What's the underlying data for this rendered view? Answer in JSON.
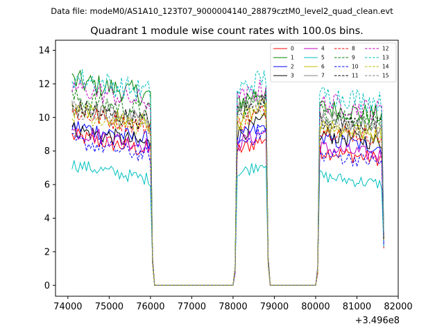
{
  "chart_data": {
    "type": "line",
    "suptitle": "Data file: modeM0/AS1A10_123T07_9000004140_28879cztM0_level2_quad_clean.evt",
    "title": "Quadrant 1 module wise count rates with 100.0s bins.",
    "xlabel": "",
    "ylabel": "",
    "x_offset_label": "+3.496e8",
    "xlim": [
      73700,
      82000
    ],
    "ylim": [
      -0.65,
      14.6
    ],
    "x_ticks": [
      74000,
      75000,
      76000,
      77000,
      78000,
      79000,
      80000,
      81000,
      82000
    ],
    "x_tick_labels": [
      "74000",
      "75000",
      "76000",
      "77000",
      "78000",
      "79000",
      "80000",
      "81000",
      "82000"
    ],
    "y_ticks": [
      0,
      2,
      4,
      6,
      8,
      10,
      12,
      14
    ],
    "y_tick_labels": [
      "0",
      "2",
      "4",
      "6",
      "8",
      "10",
      "12",
      "14"
    ],
    "legend_location": "upper right",
    "legend_columns": 4,
    "segments": [
      {
        "start": 74100,
        "end": 76000
      },
      {
        "start": 76100,
        "end": 78000
      },
      {
        "start": 78100,
        "end": 78800
      },
      {
        "start": 78900,
        "end": 80000
      },
      {
        "start": 80100,
        "end": 81650
      }
    ],
    "series": [
      {
        "name": "0",
        "color": "#ff0000",
        "dash": "solid",
        "levels": [
          8.3,
          0,
          8.0,
          0,
          7.6
        ],
        "end_value": 2.2
      },
      {
        "name": "1",
        "color": "#008000",
        "dash": "solid",
        "levels": [
          11.6,
          0,
          10.9,
          0,
          10.2
        ],
        "end_value": 2.8
      },
      {
        "name": "2",
        "color": "#0000ff",
        "dash": "solid",
        "levels": [
          8.9,
          0,
          8.7,
          0,
          8.3
        ],
        "end_value": 2.6
      },
      {
        "name": "3",
        "color": "#000000",
        "dash": "solid",
        "levels": [
          8.7,
          0,
          9.0,
          0,
          8.6
        ],
        "end_value": 2.7
      },
      {
        "name": "4",
        "color": "#bf00bf",
        "dash": "solid",
        "levels": [
          8.6,
          0,
          8.4,
          0,
          7.8
        ],
        "end_value": 2.5
      },
      {
        "name": "5",
        "color": "#00bfbf",
        "dash": "solid",
        "levels": [
          6.6,
          0,
          6.6,
          0,
          6.1
        ],
        "end_value": 2.3
      },
      {
        "name": "6",
        "color": "#bfbf00",
        "dash": "solid",
        "levels": [
          9.9,
          0,
          9.8,
          0,
          9.0
        ],
        "end_value": 2.8
      },
      {
        "name": "7",
        "color": "#808080",
        "dash": "solid",
        "levels": [
          10.1,
          0,
          10.5,
          0,
          9.6
        ],
        "end_value": 2.9
      },
      {
        "name": "8",
        "color": "#ff0000",
        "dash": "dashed",
        "levels": [
          9.7,
          0,
          9.6,
          0,
          8.9
        ],
        "end_value": 2.7
      },
      {
        "name": "9",
        "color": "#008000",
        "dash": "dashed",
        "levels": [
          10.6,
          0,
          10.5,
          0,
          9.9
        ],
        "end_value": 2.9
      },
      {
        "name": "10",
        "color": "#0000ff",
        "dash": "dashed",
        "levels": [
          8.0,
          0,
          8.4,
          0,
          7.4
        ],
        "end_value": 2.4
      },
      {
        "name": "11",
        "color": "#000000",
        "dash": "dashed",
        "levels": [
          10.0,
          0,
          10.2,
          0,
          9.5
        ],
        "end_value": 2.8
      },
      {
        "name": "12",
        "color": "#bf00bf",
        "dash": "dashed",
        "levels": [
          11.2,
          0,
          11.0,
          0,
          10.5
        ],
        "end_value": 3.0
      },
      {
        "name": "13",
        "color": "#00bfbf",
        "dash": "dashed",
        "levels": [
          11.8,
          0,
          11.6,
          0,
          11.0
        ],
        "end_value": 3.1
      },
      {
        "name": "14",
        "color": "#bfbf00",
        "dash": "dashed",
        "levels": [
          9.7,
          0,
          9.6,
          0,
          9.0
        ],
        "end_value": 2.7
      },
      {
        "name": "15",
        "color": "#808080",
        "dash": "dashed",
        "levels": [
          9.9,
          0,
          9.9,
          0,
          9.3
        ],
        "end_value": 2.8
      }
    ]
  }
}
